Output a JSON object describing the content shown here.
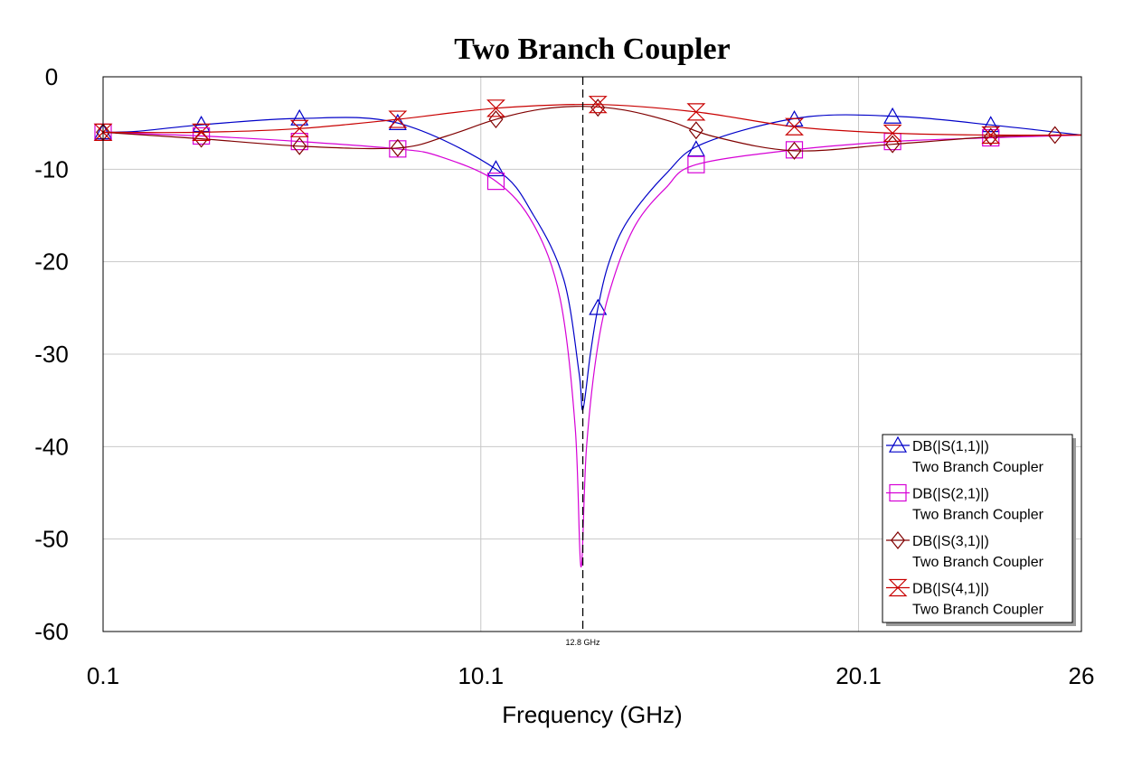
{
  "chart_data": {
    "type": "line",
    "title": "Two Branch Coupler",
    "xlabel": "Frequency (GHz)",
    "ylabel": "",
    "xlim": [
      0.1,
      26
    ],
    "ylim": [
      -60,
      0
    ],
    "x_ticks": [
      "0.1",
      "10.1",
      "20.1",
      "26"
    ],
    "x_tick_values": [
      0.1,
      10.1,
      20.1,
      26
    ],
    "y_ticks": [
      "0",
      "-10",
      "-20",
      "-30",
      "-40",
      "-50",
      "-60"
    ],
    "y_tick_values": [
      0,
      -10,
      -20,
      -30,
      -40,
      -50,
      -60
    ],
    "grid": true,
    "legend_position": "bottom-right",
    "marker_line": {
      "x": 12.8,
      "label": "12.8 GHz"
    },
    "series": [
      {
        "name": "DB(|S(1,1)|)",
        "subtitle": "Two Branch Coupler",
        "color": "#0000c8",
        "marker": "triangle",
        "x": [
          0.1,
          1.0,
          2.7,
          5.3,
          7.9,
          10.5,
          11.5,
          12.3,
          12.7,
          12.8,
          13.0,
          13.2,
          13.5,
          14.0,
          15.0,
          16.0,
          18.6,
          21.2,
          23.8,
          26
        ],
        "y": [
          -6.0,
          -5.9,
          -5.2,
          -4.5,
          -5.0,
          -10.0,
          -15.0,
          -22.0,
          -32.0,
          -36.0,
          -30.0,
          -25.0,
          -20.0,
          -15.5,
          -10.5,
          -7.2,
          -4.4,
          -4.3,
          -5.3,
          -6.3
        ],
        "marker_x": [
          0.1,
          2.7,
          5.3,
          7.9,
          10.5,
          13.2,
          15.8,
          18.4,
          21.0,
          23.6
        ]
      },
      {
        "name": "DB(|S(2,1)|)",
        "subtitle": "Two Branch Coupler",
        "color": "#d600d6",
        "marker": "square",
        "x": [
          0.1,
          2.7,
          5.3,
          7.9,
          9.0,
          10.5,
          11.5,
          12.2,
          12.6,
          12.75,
          12.9,
          13.2,
          13.6,
          14.2,
          15.0,
          15.8,
          18.4,
          21.0,
          23.6,
          26
        ],
        "y": [
          -6.0,
          -6.4,
          -7.0,
          -7.8,
          -8.6,
          -11.3,
          -16.0,
          -24.0,
          -38.0,
          -53.0,
          -40.0,
          -29.0,
          -22.0,
          -16.0,
          -12.0,
          -9.5,
          -7.9,
          -7.0,
          -6.6,
          -6.3
        ],
        "marker_x": [
          0.1,
          2.7,
          5.3,
          7.9,
          10.5,
          15.8,
          18.4,
          21.0,
          23.6
        ]
      },
      {
        "name": "DB(|S(3,1)|)",
        "subtitle": "Two Branch Coupler",
        "color": "#800000",
        "marker": "diamond",
        "x": [
          0.1,
          2.7,
          5.3,
          7.9,
          9.2,
          10.5,
          11.7,
          12.8,
          13.9,
          15.1,
          16.3,
          18.4,
          21.0,
          23.6,
          25.3,
          26
        ],
        "y": [
          -6.0,
          -6.7,
          -7.5,
          -7.7,
          -6.4,
          -4.6,
          -3.5,
          -3.2,
          -3.6,
          -4.8,
          -6.5,
          -8.0,
          -7.3,
          -6.5,
          -6.3,
          -6.3
        ],
        "marker_x": [
          0.1,
          2.7,
          5.3,
          7.9,
          10.5,
          13.2,
          15.8,
          18.4,
          21.0,
          23.6,
          25.3
        ]
      },
      {
        "name": "DB(|S(4,1)|)",
        "subtitle": "Two Branch Coupler",
        "color": "#c80000",
        "marker": "star",
        "x": [
          0.1,
          2.7,
          5.3,
          7.9,
          10.5,
          13.2,
          15.8,
          18.4,
          21.0,
          23.6,
          26
        ],
        "y": [
          -6.0,
          -6.0,
          -5.6,
          -4.6,
          -3.4,
          -3.0,
          -3.8,
          -5.4,
          -6.1,
          -6.3,
          -6.3
        ],
        "marker_x": [
          0.1,
          2.7,
          5.3,
          7.9,
          10.5,
          13.2,
          15.8,
          18.4,
          21.0,
          23.6
        ]
      }
    ]
  }
}
